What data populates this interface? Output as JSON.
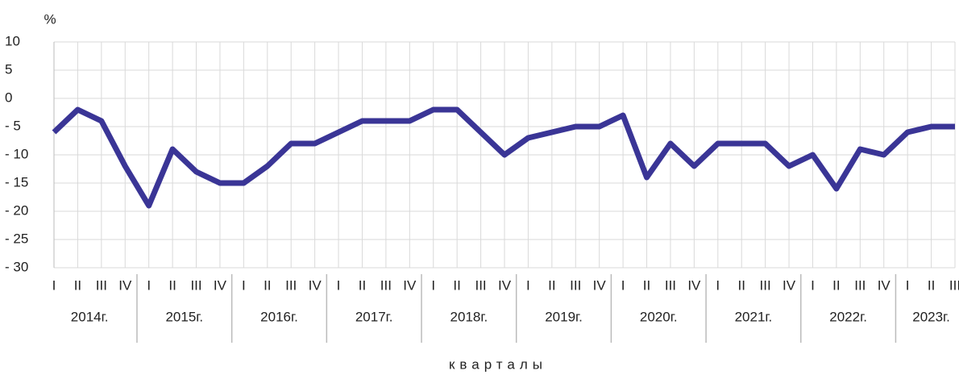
{
  "chart_data": {
    "type": "line",
    "y_unit": "%",
    "x_label": "кварталы",
    "categories": [
      "I",
      "II",
      "III",
      "IV",
      "I",
      "II",
      "III",
      "IV",
      "I",
      "II",
      "III",
      "IV",
      "I",
      "II",
      "III",
      "IV",
      "I",
      "II",
      "III",
      "IV",
      "I",
      "II",
      "III",
      "IV",
      "I",
      "II",
      "III",
      "IV",
      "I",
      "II",
      "III",
      "IV",
      "I",
      "II",
      "III",
      "IV",
      "I",
      "II",
      "III"
    ],
    "years": [
      "2014г.",
      "2015г.",
      "2016г.",
      "2017г.",
      "2018г.",
      "2019г.",
      "2020г.",
      "2021г.",
      "2022г.",
      "2023г."
    ],
    "series": [
      {
        "color": "#3a3596",
        "values": [
          -6,
          -2,
          -4,
          -12,
          -19,
          -9,
          -13,
          -15,
          -15,
          -12,
          -8,
          -8,
          -6,
          -4,
          -4,
          -4,
          -2,
          -2,
          -6,
          -10,
          -7,
          -6,
          -5,
          -5,
          -3,
          -14,
          -8,
          -12,
          -8,
          -8,
          -8,
          -12,
          -10,
          -16,
          -9,
          -10,
          -6,
          -5,
          -5
        ]
      }
    ],
    "ylim": [
      -30,
      10
    ],
    "yticks": [
      10,
      5,
      0,
      {
        "value": -5,
        "label": "- 5"
      },
      {
        "value": -10,
        "label": "- 10"
      },
      {
        "value": -15,
        "label": "- 15"
      },
      {
        "value": -20,
        "label": "- 20"
      },
      {
        "value": -25,
        "label": "- 25"
      },
      {
        "value": -30,
        "label": "- 30"
      }
    ],
    "grid": true
  }
}
